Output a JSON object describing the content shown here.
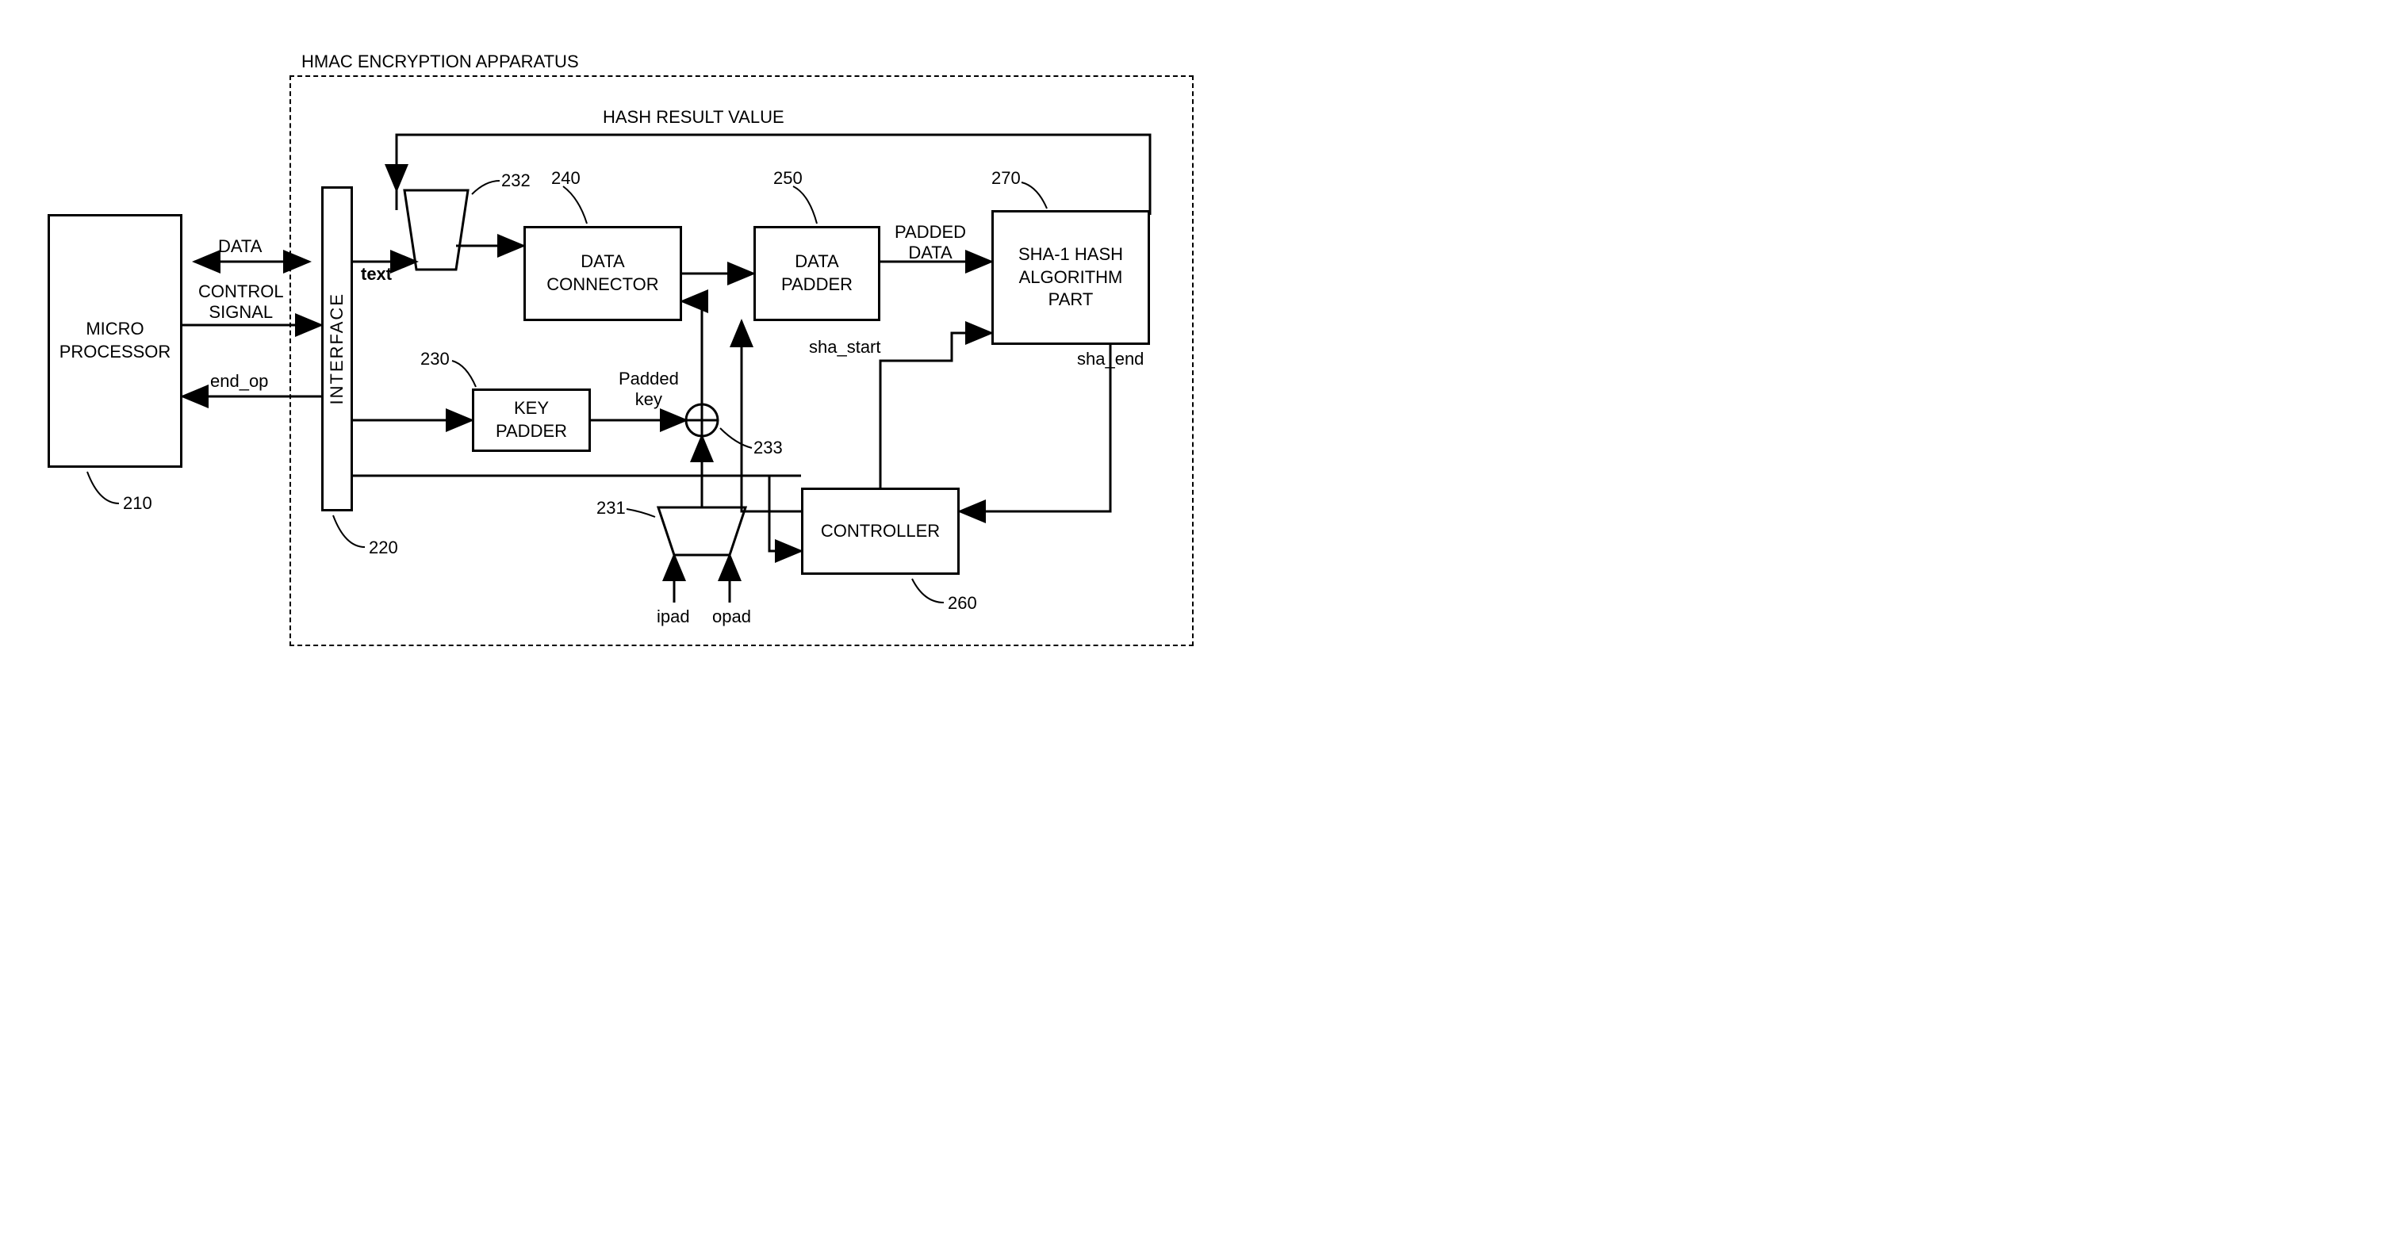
{
  "type": "block-diagram",
  "title": "HMAC ENCRYPTION APPARATUS",
  "stroke_color": "#000000",
  "stroke_width": 3,
  "dashed_pattern": "8,6",
  "font_family": "Arial",
  "base_font_size": 22,
  "blocks": {
    "microprocessor": {
      "label": "MICRO\nPROCESSOR",
      "ref": "210"
    },
    "interface": {
      "label": "INTERFACE",
      "ref": "220"
    },
    "key_padder": {
      "label": "KEY\nPADDER",
      "ref": "230"
    },
    "mux_top": {
      "ref": "232"
    },
    "mux_bottom": {
      "ref": "231"
    },
    "xor": {
      "ref": "233"
    },
    "data_connector": {
      "label": "DATA\nCONNECTOR",
      "ref": "240"
    },
    "data_padder": {
      "label": "DATA\nPADDER",
      "ref": "250"
    },
    "sha1": {
      "label": "SHA-1 HASH\nALGORITHM\nPART",
      "ref": "270"
    },
    "controller": {
      "label": "CONTROLLER",
      "ref": "260"
    }
  },
  "signals": {
    "data": "DATA",
    "control_signal": "CONTROL\nSIGNAL",
    "end_op": "end_op",
    "text": "text",
    "padded_key": "Padded\nkey",
    "ipad": "ipad",
    "opad": "opad",
    "sha_start": "sha_start",
    "sha_end": "sha_end",
    "padded_data": "PADDED\nDATA",
    "hash_result": "HASH RESULT VALUE"
  }
}
